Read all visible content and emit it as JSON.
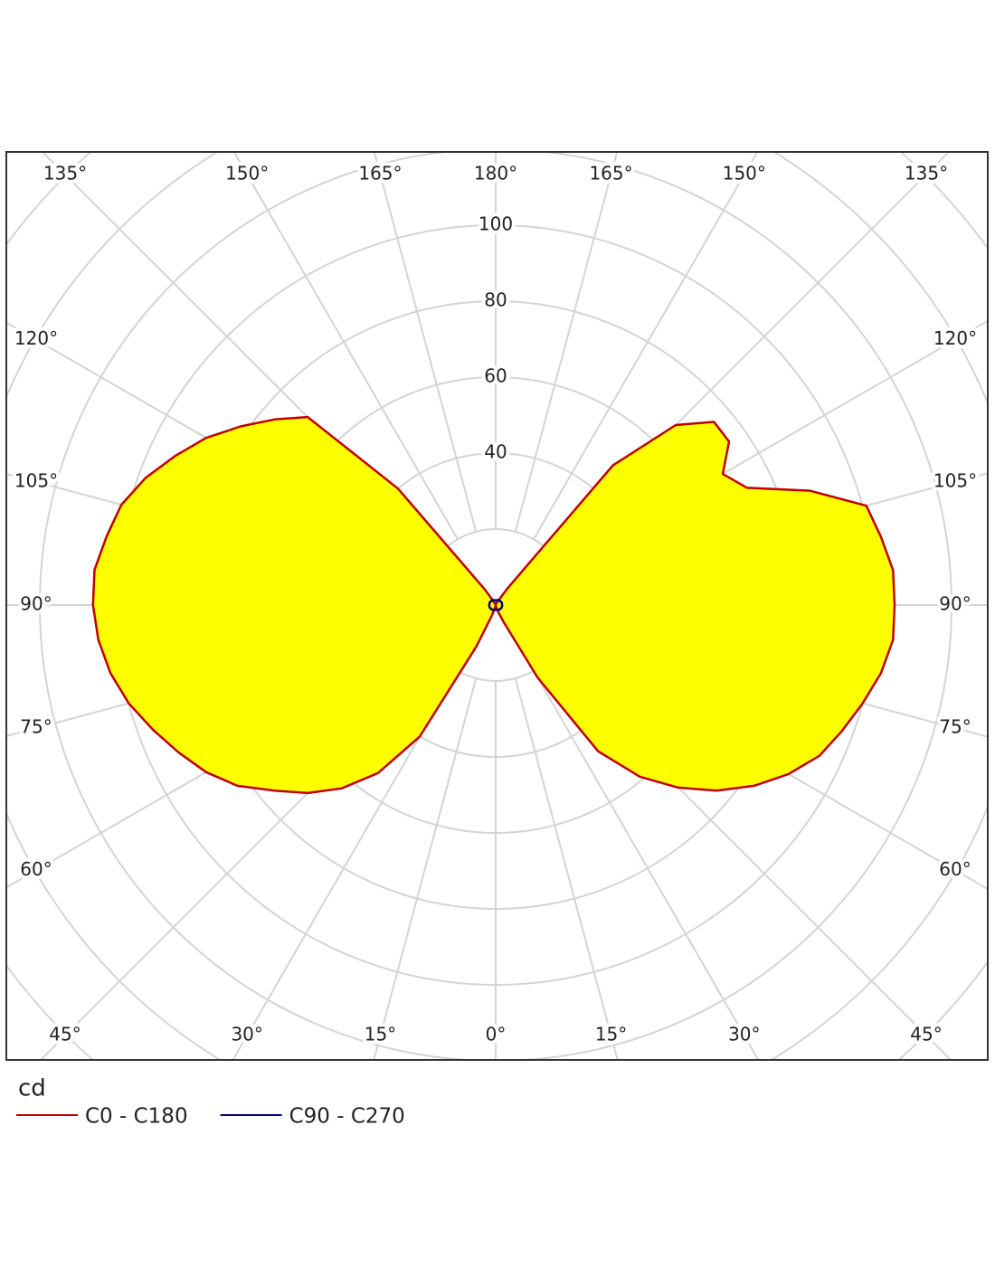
{
  "chart_data": {
    "type": "polar",
    "r_label": "cd",
    "rlim": [
      0,
      180
    ],
    "rgrid_step": 20,
    "rticks": [
      40,
      60,
      80,
      100
    ],
    "angle_ticks": [
      {
        "value": 0,
        "label": "0°"
      },
      {
        "value": 15,
        "label": "15°"
      },
      {
        "value": 30,
        "label": "30°"
      },
      {
        "value": 45,
        "label": "45°"
      },
      {
        "value": 60,
        "label": "60°"
      },
      {
        "value": 75,
        "label": "75°"
      },
      {
        "value": 90,
        "label": "90°"
      },
      {
        "value": 105,
        "label": "105°"
      },
      {
        "value": 120,
        "label": "120°"
      },
      {
        "value": 135,
        "label": "135°"
      },
      {
        "value": 150,
        "label": "150°"
      },
      {
        "value": 165,
        "label": "165°"
      },
      {
        "value": 180,
        "label": "180°"
      }
    ],
    "grid": true,
    "fill_color": "#ffff00",
    "x": [
      -180,
      -175,
      -170,
      -165,
      -160,
      -155,
      -150,
      -145,
      -140,
      -135,
      -130,
      -125,
      -120,
      -115,
      -110,
      -105,
      -100,
      -95,
      -90,
      -85,
      -80,
      -75,
      -70,
      -65,
      -60,
      -55,
      -50,
      -45,
      -40,
      -35,
      -30,
      -25,
      -20,
      -15,
      -10,
      -5,
      0,
      5,
      10,
      15,
      20,
      25,
      30,
      35,
      40,
      45,
      50,
      55,
      60,
      65,
      70,
      75,
      80,
      85,
      90,
      95,
      100,
      105,
      110,
      115,
      120,
      125,
      130,
      135,
      140,
      145,
      150,
      155,
      160,
      165,
      170,
      175,
      180
    ],
    "series": [
      {
        "name": "C0 - C180",
        "color": "#c00000",
        "filled": true,
        "values": [
          0,
          0,
          0,
          0,
          0,
          0,
          1,
          5,
          40,
          70,
          76,
          82,
          88,
          93,
          98,
          102,
          104,
          106,
          106,
          105,
          103,
          100,
          96,
          92,
          88,
          83,
          76,
          70,
          63,
          54,
          40,
          12,
          3,
          1,
          0.5,
          0,
          0,
          0,
          0.5,
          1,
          2,
          5,
          22,
          47,
          59,
          68,
          76,
          83,
          89,
          94,
          97,
          100,
          103,
          105,
          105,
          105,
          103,
          101,
          88,
          73,
          69,
          75,
          75,
          67,
          48,
          5,
          1,
          0.5,
          0,
          0,
          0,
          0,
          0
        ]
      },
      {
        "name": "C90 - C270",
        "color": "#000080",
        "filled": false,
        "values": [
          1.2,
          1.2,
          1.3,
          1.3,
          1.4,
          1.4,
          1.5,
          1.5,
          1.5,
          1.6,
          1.6,
          1.6,
          1.6,
          1.7,
          1.7,
          1.7,
          1.7,
          1.7,
          1.7,
          1.7,
          1.7,
          1.7,
          1.7,
          1.7,
          1.6,
          1.6,
          1.6,
          1.6,
          1.5,
          1.5,
          1.5,
          1.4,
          1.4,
          1.3,
          1.3,
          1.2,
          1.2,
          1.2,
          1.3,
          1.3,
          1.4,
          1.4,
          1.5,
          1.5,
          1.5,
          1.6,
          1.6,
          1.6,
          1.6,
          1.7,
          1.7,
          1.7,
          1.7,
          1.7,
          1.7,
          1.7,
          1.7,
          1.7,
          1.7,
          1.7,
          1.6,
          1.6,
          1.6,
          1.6,
          1.5,
          1.5,
          1.5,
          1.4,
          1.4,
          1.3,
          1.3,
          1.2,
          1.2
        ]
      }
    ]
  }
}
